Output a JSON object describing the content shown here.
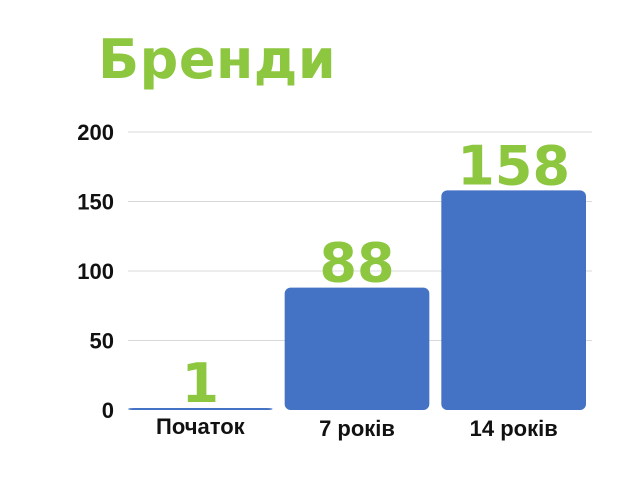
{
  "chart_data": {
    "type": "bar",
    "title": "Бренди",
    "categories": [
      "Початок",
      "7 років",
      "14 років"
    ],
    "values": [
      1,
      88,
      158
    ],
    "ylim": [
      0,
      200
    ],
    "yticks": [
      0,
      50,
      100,
      150,
      200
    ],
    "grid": true,
    "xlabel": "",
    "ylabel": "",
    "colors": {
      "bar": "#4472c4",
      "title": "#8dc63f",
      "data_label": "#8dc63f",
      "grid": "#d9d9d9"
    }
  }
}
